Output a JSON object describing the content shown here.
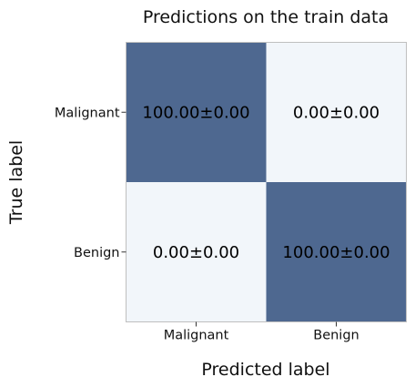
{
  "chart_data": {
    "type": "heatmap",
    "title": "Predictions on the train data",
    "xlabel": "Predicted label",
    "ylabel": "True label",
    "x_categories": [
      "Malignant",
      "Benign"
    ],
    "y_categories": [
      "Malignant",
      "Benign"
    ],
    "values": [
      [
        100.0,
        0.0
      ],
      [
        0.0,
        100.0
      ]
    ],
    "cell_labels": [
      [
        "100.00±0.00",
        "0.00±0.00"
      ],
      [
        "0.00±0.00",
        "100.00±0.00"
      ]
    ],
    "color_range": [
      0,
      100
    ],
    "colors": {
      "low": "#f2f6fa",
      "high": "#4e6890",
      "text": "#000000",
      "frame": "#bfbfbf"
    },
    "grid": false,
    "legend": "none"
  }
}
